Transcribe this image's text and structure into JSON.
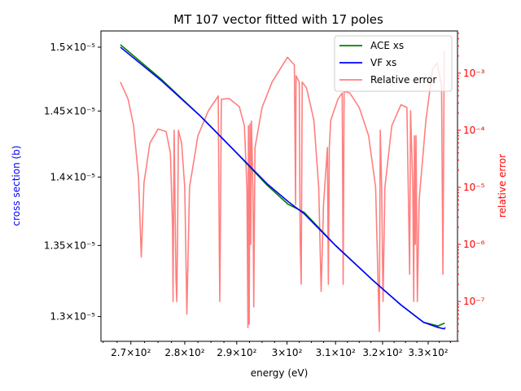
{
  "chart_data": {
    "type": "line",
    "title": "MT 107 vector fitted with 17 poles",
    "xlabel": "energy (eV)",
    "ylabel_left": "cross section (b)",
    "ylabel_right": "relative error",
    "x_scale": "log",
    "y_left_scale": "log",
    "y_right_scale": "log",
    "xlim": [
      264.6,
      336.6
    ],
    "ylim_left": [
      1.283e-05,
      1.513e-05
    ],
    "ylim_right": [
      2e-08,
      0.0055
    ],
    "x_ticks": [
      {
        "value": 270,
        "label": "2.7×10²"
      },
      {
        "value": 280,
        "label": "2.8×10²"
      },
      {
        "value": 290,
        "label": "2.9×10²"
      },
      {
        "value": 300,
        "label": "3×10²"
      },
      {
        "value": 310,
        "label": "3.1×10²"
      },
      {
        "value": 320,
        "label": "3.2×10²"
      },
      {
        "value": 330,
        "label": "3.3×10²"
      }
    ],
    "y_left_ticks": [
      {
        "value": 1.3e-05,
        "label": "1.3×10⁻⁵"
      },
      {
        "value": 1.35e-05,
        "label": "1.35×10⁻⁵"
      },
      {
        "value": 1.4e-05,
        "label": "1.4×10⁻⁵"
      },
      {
        "value": 1.45e-05,
        "label": "1.45×10⁻⁵"
      },
      {
        "value": 1.5e-05,
        "label": "1.5×10⁻⁵"
      }
    ],
    "y_right_ticks": [
      {
        "value": 1e-07,
        "label": "10⁻⁷"
      },
      {
        "value": 1e-06,
        "label": "10⁻⁶"
      },
      {
        "value": 1e-05,
        "label": "10⁻⁵"
      },
      {
        "value": 0.0001,
        "label": "10⁻⁴"
      },
      {
        "value": 0.001,
        "label": "10⁻³"
      }
    ],
    "legend_position": "top-right",
    "series": [
      {
        "name": "ACE xs",
        "axis": "left",
        "color": "#008000",
        "points": [
          [
            268.1,
            1.502e-05
          ],
          [
            275.5,
            1.475e-05
          ],
          [
            283.0,
            1.446e-05
          ],
          [
            290.0,
            1.418e-05
          ],
          [
            296.0,
            1.394e-05
          ],
          [
            300.2,
            1.38e-05
          ],
          [
            303.5,
            1.374e-05
          ],
          [
            310.0,
            1.35e-05
          ],
          [
            318.0,
            1.325e-05
          ],
          [
            324.0,
            1.308e-05
          ],
          [
            329.0,
            1.296e-05
          ],
          [
            332.2,
            1.2935e-05
          ],
          [
            333.7,
            1.2955e-05
          ]
        ]
      },
      {
        "name": "VF xs",
        "axis": "left",
        "color": "#0000ff",
        "points": [
          [
            268.1,
            1.5e-05
          ],
          [
            275.5,
            1.474e-05
          ],
          [
            283.0,
            1.446e-05
          ],
          [
            290.0,
            1.418e-05
          ],
          [
            296.0,
            1.395e-05
          ],
          [
            300.2,
            1.382e-05
          ],
          [
            303.5,
            1.373e-05
          ],
          [
            310.0,
            1.35e-05
          ],
          [
            318.0,
            1.325e-05
          ],
          [
            324.0,
            1.308e-05
          ],
          [
            329.0,
            1.296e-05
          ],
          [
            332.2,
            1.2925e-05
          ],
          [
            333.6,
            1.2915e-05
          ],
          [
            333.8,
            1.2925e-05
          ]
        ]
      },
      {
        "name": "Relative error",
        "axis": "right",
        "color": "#ff0000",
        "opacity": 0.5,
        "points": [
          [
            268.1,
            0.0007
          ],
          [
            269.5,
            0.00035
          ],
          [
            270.5,
            0.00012
          ],
          [
            271.4,
            1.5e-05
          ],
          [
            271.9,
            6e-07
          ],
          [
            272.4,
            1.2e-05
          ],
          [
            273.5,
            6e-05
          ],
          [
            275.0,
            0.000105
          ],
          [
            276.5,
            9.5e-05
          ],
          [
            277.3,
            4e-05
          ],
          [
            277.7,
            2e-06
          ],
          [
            277.8,
            1e-07
          ],
          [
            277.9,
            5e-06
          ],
          [
            278.0,
            0.0001
          ],
          [
            278.2,
            3e-06
          ],
          [
            278.35,
            2.5e-07
          ],
          [
            278.5,
            1e-07
          ],
          [
            278.65,
            1.5e-06
          ],
          [
            278.8,
            0.0001
          ],
          [
            279.4,
            6e-05
          ],
          [
            280.0,
            1e-05
          ],
          [
            280.4,
            6e-08
          ],
          [
            280.9,
            1e-05
          ],
          [
            282.5,
            8e-05
          ],
          [
            284.5,
            0.00022
          ],
          [
            286.0,
            0.00035
          ],
          [
            286.4,
            0.0004
          ],
          [
            286.6,
            1e-06
          ],
          [
            286.7,
            1e-07
          ],
          [
            286.8,
            1e-06
          ],
          [
            287.0,
            0.00035
          ],
          [
            288.5,
            0.00036
          ],
          [
            290.5,
            0.00026
          ],
          [
            291.5,
            0.00012
          ],
          [
            292.0,
            1e-05
          ],
          [
            292.2,
            3.5e-08
          ],
          [
            292.3,
            0.00012
          ],
          [
            292.45,
            4e-08
          ],
          [
            292.6,
            0.00013
          ],
          [
            292.75,
            1e-06
          ],
          [
            292.9,
            0.000145
          ],
          [
            293.2,
            8e-06
          ],
          [
            293.35,
            8e-08
          ],
          [
            293.6,
            5e-05
          ],
          [
            295.0,
            0.00025
          ],
          [
            297.0,
            0.0007
          ],
          [
            300.1,
            0.0019
          ],
          [
            301.5,
            0.0014
          ],
          [
            301.75,
            5e-06
          ],
          [
            301.85,
            0.0009
          ],
          [
            302.5,
            0.0007
          ],
          [
            302.65,
            3e-06
          ],
          [
            302.7,
            1e-06
          ],
          [
            302.9,
            2e-07
          ],
          [
            303.1,
            0.0007
          ],
          [
            304.0,
            0.00055
          ],
          [
            305.5,
            0.00015
          ],
          [
            306.5,
            1e-05
          ],
          [
            307.0,
            1.5e-07
          ],
          [
            307.5,
            5e-06
          ],
          [
            308.3,
            5e-05
          ],
          [
            308.5,
            2e-07
          ],
          [
            308.7,
            5e-05
          ],
          [
            309.0,
            0.00015
          ],
          [
            310.5,
            0.00035
          ],
          [
            311.4,
            0.00045
          ],
          [
            311.6,
            2e-07
          ],
          [
            311.8,
            0.00048
          ],
          [
            313.0,
            0.00045
          ],
          [
            315.0,
            0.00025
          ],
          [
            317.0,
            8e-05
          ],
          [
            318.5,
            1e-05
          ],
          [
            319.3,
            3e-08
          ],
          [
            319.5,
            0.0001
          ],
          [
            319.8,
            1e-05
          ],
          [
            320.1,
            1e-07
          ],
          [
            320.5,
            1e-05
          ],
          [
            322.0,
            0.00012
          ],
          [
            324.0,
            0.00028
          ],
          [
            325.3,
            0.00025
          ],
          [
            325.7,
            3e-06
          ],
          [
            325.9,
            3e-07
          ],
          [
            326.1,
            0.00022
          ],
          [
            326.6,
            1e-05
          ],
          [
            326.8,
            1e-07
          ],
          [
            326.95,
            8e-05
          ],
          [
            327.15,
            1e-06
          ],
          [
            327.3,
            8e-05
          ],
          [
            327.6,
            1e-07
          ],
          [
            328.0,
            6e-06
          ],
          [
            329.5,
            0.00015
          ],
          [
            331.0,
            0.0012
          ],
          [
            332.0,
            0.0015
          ],
          [
            333.0,
            0.0006
          ],
          [
            333.3,
            3e-07
          ],
          [
            333.6,
            0.0025
          ]
        ]
      }
    ]
  }
}
